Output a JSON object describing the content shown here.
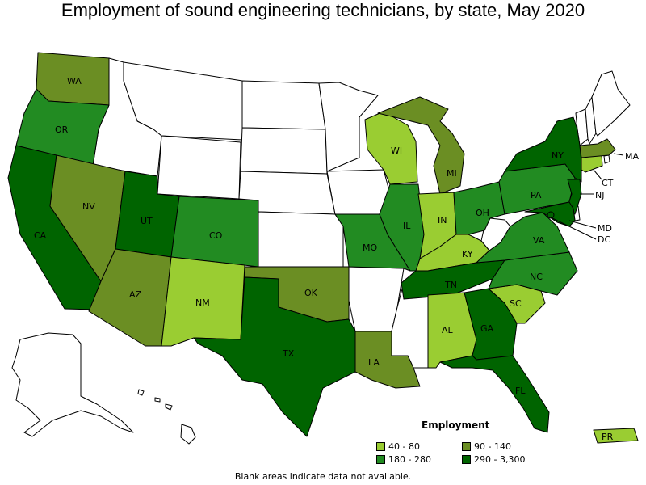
{
  "title": "Employment of sound engineering technicians, by state, May 2020",
  "legend": {
    "title": "Employment",
    "items": [
      {
        "label": "40 - 80",
        "color": "#9acd32"
      },
      {
        "label": "90 - 140",
        "color": "#6b8e23"
      },
      {
        "label": "180 - 280",
        "color": "#228b22"
      },
      {
        "label": "290 - 3,300",
        "color": "#006400"
      }
    ]
  },
  "note": "Blank areas indicate data not available.",
  "states": [
    {
      "abbr": "WA",
      "bin": "90 - 140"
    },
    {
      "abbr": "OR",
      "bin": "180 - 280"
    },
    {
      "abbr": "CA",
      "bin": "290 - 3,300"
    },
    {
      "abbr": "NV",
      "bin": "90 - 140"
    },
    {
      "abbr": "UT",
      "bin": "290 - 3,300"
    },
    {
      "abbr": "AZ",
      "bin": "90 - 140"
    },
    {
      "abbr": "CO",
      "bin": "180 - 280"
    },
    {
      "abbr": "NM",
      "bin": "40 - 80"
    },
    {
      "abbr": "TX",
      "bin": "290 - 3,300"
    },
    {
      "abbr": "OK",
      "bin": "90 - 140"
    },
    {
      "abbr": "MO",
      "bin": "180 - 280"
    },
    {
      "abbr": "LA",
      "bin": "90 - 140"
    },
    {
      "abbr": "WI",
      "bin": "40 - 80"
    },
    {
      "abbr": "IL",
      "bin": "180 - 280"
    },
    {
      "abbr": "MI",
      "bin": "90 - 140"
    },
    {
      "abbr": "IN",
      "bin": "40 - 80"
    },
    {
      "abbr": "OH",
      "bin": "180 - 280"
    },
    {
      "abbr": "KY",
      "bin": "40 - 80"
    },
    {
      "abbr": "TN",
      "bin": "290 - 3,300"
    },
    {
      "abbr": "AL",
      "bin": "40 - 80"
    },
    {
      "abbr": "GA",
      "bin": "290 - 3,300"
    },
    {
      "abbr": "FL",
      "bin": "290 - 3,300"
    },
    {
      "abbr": "SC",
      "bin": "40 - 80"
    },
    {
      "abbr": "NC",
      "bin": "180 - 280"
    },
    {
      "abbr": "VA",
      "bin": "180 - 280"
    },
    {
      "abbr": "PA",
      "bin": "180 - 280"
    },
    {
      "abbr": "NY",
      "bin": "290 - 3,300"
    },
    {
      "abbr": "NJ",
      "bin": "290 - 3,300"
    },
    {
      "abbr": "MD",
      "bin": "290 - 3,300"
    },
    {
      "abbr": "DC",
      "bin": "290 - 3,300"
    },
    {
      "abbr": "CT",
      "bin": "40 - 80"
    },
    {
      "abbr": "MA",
      "bin": "90 - 140"
    },
    {
      "abbr": "PR",
      "bin": "40 - 80"
    }
  ]
}
